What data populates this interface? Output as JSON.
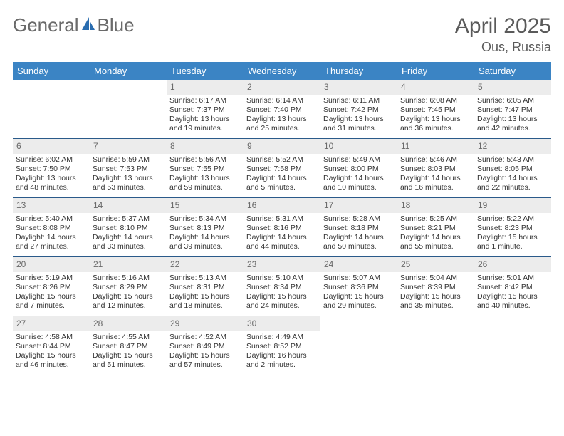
{
  "logo": {
    "textA": "General",
    "textB": "Blue"
  },
  "title": "April 2025",
  "location": "Ous, Russia",
  "colors": {
    "header_bg": "#3b84c4",
    "header_text": "#ffffff",
    "daynum_bg": "#ececec",
    "daynum_text": "#6a6a6a",
    "rule": "#2a5a8a",
    "logo_gray": "#6a6a6a",
    "logo_blue": "#2a6db0"
  },
  "dow": [
    "Sunday",
    "Monday",
    "Tuesday",
    "Wednesday",
    "Thursday",
    "Friday",
    "Saturday"
  ],
  "weeks": [
    [
      {
        "n": "",
        "sr": "",
        "ss": "",
        "dl": ""
      },
      {
        "n": "",
        "sr": "",
        "ss": "",
        "dl": ""
      },
      {
        "n": "1",
        "sr": "Sunrise: 6:17 AM",
        "ss": "Sunset: 7:37 PM",
        "dl": "Daylight: 13 hours and 19 minutes."
      },
      {
        "n": "2",
        "sr": "Sunrise: 6:14 AM",
        "ss": "Sunset: 7:40 PM",
        "dl": "Daylight: 13 hours and 25 minutes."
      },
      {
        "n": "3",
        "sr": "Sunrise: 6:11 AM",
        "ss": "Sunset: 7:42 PM",
        "dl": "Daylight: 13 hours and 31 minutes."
      },
      {
        "n": "4",
        "sr": "Sunrise: 6:08 AM",
        "ss": "Sunset: 7:45 PM",
        "dl": "Daylight: 13 hours and 36 minutes."
      },
      {
        "n": "5",
        "sr": "Sunrise: 6:05 AM",
        "ss": "Sunset: 7:47 PM",
        "dl": "Daylight: 13 hours and 42 minutes."
      }
    ],
    [
      {
        "n": "6",
        "sr": "Sunrise: 6:02 AM",
        "ss": "Sunset: 7:50 PM",
        "dl": "Daylight: 13 hours and 48 minutes."
      },
      {
        "n": "7",
        "sr": "Sunrise: 5:59 AM",
        "ss": "Sunset: 7:53 PM",
        "dl": "Daylight: 13 hours and 53 minutes."
      },
      {
        "n": "8",
        "sr": "Sunrise: 5:56 AM",
        "ss": "Sunset: 7:55 PM",
        "dl": "Daylight: 13 hours and 59 minutes."
      },
      {
        "n": "9",
        "sr": "Sunrise: 5:52 AM",
        "ss": "Sunset: 7:58 PM",
        "dl": "Daylight: 14 hours and 5 minutes."
      },
      {
        "n": "10",
        "sr": "Sunrise: 5:49 AM",
        "ss": "Sunset: 8:00 PM",
        "dl": "Daylight: 14 hours and 10 minutes."
      },
      {
        "n": "11",
        "sr": "Sunrise: 5:46 AM",
        "ss": "Sunset: 8:03 PM",
        "dl": "Daylight: 14 hours and 16 minutes."
      },
      {
        "n": "12",
        "sr": "Sunrise: 5:43 AM",
        "ss": "Sunset: 8:05 PM",
        "dl": "Daylight: 14 hours and 22 minutes."
      }
    ],
    [
      {
        "n": "13",
        "sr": "Sunrise: 5:40 AM",
        "ss": "Sunset: 8:08 PM",
        "dl": "Daylight: 14 hours and 27 minutes."
      },
      {
        "n": "14",
        "sr": "Sunrise: 5:37 AM",
        "ss": "Sunset: 8:10 PM",
        "dl": "Daylight: 14 hours and 33 minutes."
      },
      {
        "n": "15",
        "sr": "Sunrise: 5:34 AM",
        "ss": "Sunset: 8:13 PM",
        "dl": "Daylight: 14 hours and 39 minutes."
      },
      {
        "n": "16",
        "sr": "Sunrise: 5:31 AM",
        "ss": "Sunset: 8:16 PM",
        "dl": "Daylight: 14 hours and 44 minutes."
      },
      {
        "n": "17",
        "sr": "Sunrise: 5:28 AM",
        "ss": "Sunset: 8:18 PM",
        "dl": "Daylight: 14 hours and 50 minutes."
      },
      {
        "n": "18",
        "sr": "Sunrise: 5:25 AM",
        "ss": "Sunset: 8:21 PM",
        "dl": "Daylight: 14 hours and 55 minutes."
      },
      {
        "n": "19",
        "sr": "Sunrise: 5:22 AM",
        "ss": "Sunset: 8:23 PM",
        "dl": "Daylight: 15 hours and 1 minute."
      }
    ],
    [
      {
        "n": "20",
        "sr": "Sunrise: 5:19 AM",
        "ss": "Sunset: 8:26 PM",
        "dl": "Daylight: 15 hours and 7 minutes."
      },
      {
        "n": "21",
        "sr": "Sunrise: 5:16 AM",
        "ss": "Sunset: 8:29 PM",
        "dl": "Daylight: 15 hours and 12 minutes."
      },
      {
        "n": "22",
        "sr": "Sunrise: 5:13 AM",
        "ss": "Sunset: 8:31 PM",
        "dl": "Daylight: 15 hours and 18 minutes."
      },
      {
        "n": "23",
        "sr": "Sunrise: 5:10 AM",
        "ss": "Sunset: 8:34 PM",
        "dl": "Daylight: 15 hours and 24 minutes."
      },
      {
        "n": "24",
        "sr": "Sunrise: 5:07 AM",
        "ss": "Sunset: 8:36 PM",
        "dl": "Daylight: 15 hours and 29 minutes."
      },
      {
        "n": "25",
        "sr": "Sunrise: 5:04 AM",
        "ss": "Sunset: 8:39 PM",
        "dl": "Daylight: 15 hours and 35 minutes."
      },
      {
        "n": "26",
        "sr": "Sunrise: 5:01 AM",
        "ss": "Sunset: 8:42 PM",
        "dl": "Daylight: 15 hours and 40 minutes."
      }
    ],
    [
      {
        "n": "27",
        "sr": "Sunrise: 4:58 AM",
        "ss": "Sunset: 8:44 PM",
        "dl": "Daylight: 15 hours and 46 minutes."
      },
      {
        "n": "28",
        "sr": "Sunrise: 4:55 AM",
        "ss": "Sunset: 8:47 PM",
        "dl": "Daylight: 15 hours and 51 minutes."
      },
      {
        "n": "29",
        "sr": "Sunrise: 4:52 AM",
        "ss": "Sunset: 8:49 PM",
        "dl": "Daylight: 15 hours and 57 minutes."
      },
      {
        "n": "30",
        "sr": "Sunrise: 4:49 AM",
        "ss": "Sunset: 8:52 PM",
        "dl": "Daylight: 16 hours and 2 minutes."
      },
      {
        "n": "",
        "sr": "",
        "ss": "",
        "dl": ""
      },
      {
        "n": "",
        "sr": "",
        "ss": "",
        "dl": ""
      },
      {
        "n": "",
        "sr": "",
        "ss": "",
        "dl": ""
      }
    ]
  ]
}
